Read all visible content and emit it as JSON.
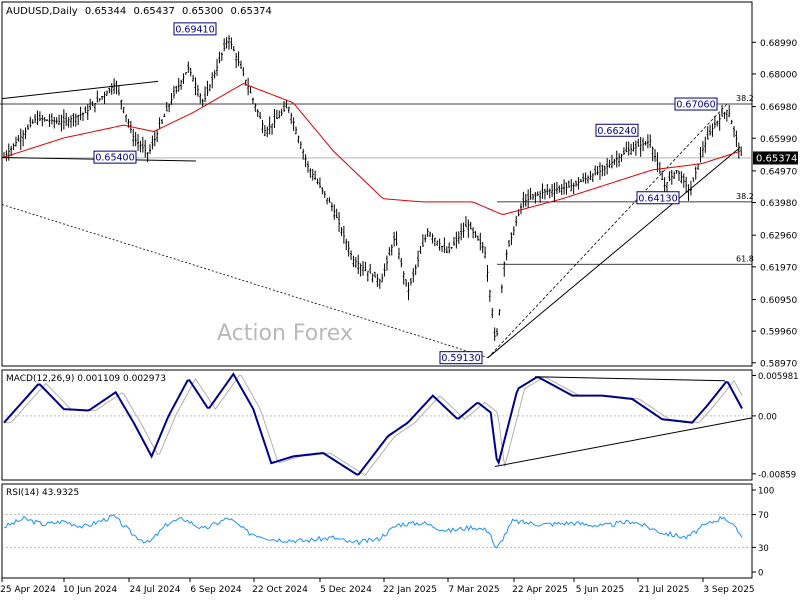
{
  "chart_data": {
    "type": "candlestick",
    "symbol": "AUDUSD,Daily",
    "ohlc": {
      "open": "0.65344",
      "high": "0.65437",
      "low": "0.65300",
      "close": "0.65374"
    },
    "watermark": "Action Forex",
    "x_tick_labels": [
      "25 Apr 2024",
      "10 Jun 2024",
      "24 Jul 2024",
      "6 Sep 2024",
      "22 Oct 2024",
      "5 Dec 2024",
      "22 Jan 2025",
      "7 Mar 2025",
      "22 Apr 2025",
      "5 Jun 2025",
      "21 Jul 2025",
      "3 Sep 2025"
    ],
    "price_axis": {
      "range": [
        0.5887,
        0.7025
      ],
      "ticks": [
        "0.68990",
        "0.68000",
        "0.66980",
        "0.65990",
        "0.64970",
        "0.63980",
        "0.62960",
        "0.61970",
        "0.60950",
        "0.59960",
        "0.58970"
      ]
    },
    "current_price_label": "0.65374",
    "price_waypoints": [
      {
        "x": 0,
        "close": 0.654
      },
      {
        "x": 32,
        "close": 0.666
      },
      {
        "x": 60,
        "close": 0.665
      },
      {
        "x": 82,
        "close": 0.668
      },
      {
        "x": 112,
        "close": 0.677
      },
      {
        "x": 130,
        "close": 0.66
      },
      {
        "x": 145,
        "close": 0.655
      },
      {
        "x": 168,
        "close": 0.672
      },
      {
        "x": 185,
        "close": 0.682
      },
      {
        "x": 200,
        "close": 0.671
      },
      {
        "x": 225,
        "close": 0.6915
      },
      {
        "x": 240,
        "close": 0.68
      },
      {
        "x": 262,
        "close": 0.662
      },
      {
        "x": 285,
        "close": 0.67
      },
      {
        "x": 305,
        "close": 0.651
      },
      {
        "x": 330,
        "close": 0.638
      },
      {
        "x": 350,
        "close": 0.622
      },
      {
        "x": 378,
        "close": 0.615
      },
      {
        "x": 392,
        "close": 0.629
      },
      {
        "x": 405,
        "close": 0.612
      },
      {
        "x": 425,
        "close": 0.631
      },
      {
        "x": 445,
        "close": 0.624
      },
      {
        "x": 465,
        "close": 0.633
      },
      {
        "x": 482,
        "close": 0.625
      },
      {
        "x": 490,
        "close": 0.605
      },
      {
        "x": 493,
        "close": 0.5945
      },
      {
        "x": 502,
        "close": 0.622
      },
      {
        "x": 520,
        "close": 0.64
      },
      {
        "x": 540,
        "close": 0.643
      },
      {
        "x": 570,
        "close": 0.645
      },
      {
        "x": 600,
        "close": 0.65
      },
      {
        "x": 625,
        "close": 0.656
      },
      {
        "x": 648,
        "close": 0.659
      },
      {
        "x": 662,
        "close": 0.645
      },
      {
        "x": 675,
        "close": 0.65
      },
      {
        "x": 688,
        "close": 0.643
      },
      {
        "x": 700,
        "close": 0.656
      },
      {
        "x": 712,
        "close": 0.664
      },
      {
        "x": 726,
        "close": 0.669
      },
      {
        "x": 740,
        "close": 0.6537
      }
    ],
    "sma_waypoints": [
      {
        "x": 0,
        "value": 0.654
      },
      {
        "x": 60,
        "value": 0.66
      },
      {
        "x": 120,
        "value": 0.664
      },
      {
        "x": 150,
        "value": 0.662
      },
      {
        "x": 190,
        "value": 0.668
      },
      {
        "x": 240,
        "value": 0.677
      },
      {
        "x": 290,
        "value": 0.671
      },
      {
        "x": 330,
        "value": 0.656
      },
      {
        "x": 380,
        "value": 0.641
      },
      {
        "x": 420,
        "value": 0.64
      },
      {
        "x": 470,
        "value": 0.64
      },
      {
        "x": 500,
        "value": 0.636
      },
      {
        "x": 560,
        "value": 0.641
      },
      {
        "x": 610,
        "value": 0.646
      },
      {
        "x": 650,
        "value": 0.65
      },
      {
        "x": 700,
        "value": 0.652
      },
      {
        "x": 740,
        "value": 0.656
      }
    ],
    "price_labels": [
      {
        "text": "0.69410",
        "price": 0.6941
      },
      {
        "text": "0.65400",
        "price": 0.654
      },
      {
        "text": "0.66240",
        "price": 0.6624
      },
      {
        "text": "0.67060",
        "price": 0.6706
      },
      {
        "text": "0.64130",
        "price": 0.6413
      },
      {
        "text": "0.59130",
        "price": 0.5913
      }
    ],
    "fib_levels": [
      {
        "text": "38.2",
        "price": 0.6706
      },
      {
        "text": "38.2",
        "price": 0.64
      },
      {
        "text": "61.8",
        "price": 0.6205
      }
    ],
    "macd": {
      "label": "MACD(12,26,9) 0.001109 0.002973",
      "axis_ticks": [
        "0.005981",
        "0.00",
        "-0.00859"
      ],
      "range": [
        -0.0095,
        0.0068
      ],
      "waypoints": [
        {
          "x": 0,
          "value": -0.001
        },
        {
          "x": 35,
          "value": 0.0048
        },
        {
          "x": 60,
          "value": 0.001
        },
        {
          "x": 85,
          "value": 0.0008
        },
        {
          "x": 112,
          "value": 0.0035
        },
        {
          "x": 130,
          "value": -0.001
        },
        {
          "x": 148,
          "value": -0.006
        },
        {
          "x": 165,
          "value": 0.0
        },
        {
          "x": 185,
          "value": 0.0055
        },
        {
          "x": 205,
          "value": 0.001
        },
        {
          "x": 230,
          "value": 0.0062
        },
        {
          "x": 250,
          "value": 0.001
        },
        {
          "x": 268,
          "value": -0.007
        },
        {
          "x": 290,
          "value": -0.006
        },
        {
          "x": 320,
          "value": -0.0055
        },
        {
          "x": 355,
          "value": -0.0088
        },
        {
          "x": 385,
          "value": -0.003
        },
        {
          "x": 405,
          "value": -0.001
        },
        {
          "x": 430,
          "value": 0.003
        },
        {
          "x": 455,
          "value": -0.0005
        },
        {
          "x": 475,
          "value": 0.002
        },
        {
          "x": 488,
          "value": 0.0005
        },
        {
          "x": 495,
          "value": -0.0075
        },
        {
          "x": 515,
          "value": 0.004
        },
        {
          "x": 535,
          "value": 0.0058
        },
        {
          "x": 570,
          "value": 0.003
        },
        {
          "x": 600,
          "value": 0.003
        },
        {
          "x": 630,
          "value": 0.0025
        },
        {
          "x": 660,
          "value": -0.0005
        },
        {
          "x": 690,
          "value": -0.001
        },
        {
          "x": 705,
          "value": 0.0015
        },
        {
          "x": 725,
          "value": 0.0052
        },
        {
          "x": 740,
          "value": 0.0011
        }
      ]
    },
    "rsi": {
      "label": "RSI(14) 43.9325",
      "axis_ticks": [
        "100",
        "70",
        "30",
        "0"
      ],
      "range": [
        0,
        100
      ],
      "levels": [
        70,
        30
      ],
      "waypoints": [
        {
          "x": 0,
          "value": 55
        },
        {
          "x": 20,
          "value": 65
        },
        {
          "x": 40,
          "value": 58
        },
        {
          "x": 60,
          "value": 62
        },
        {
          "x": 80,
          "value": 55
        },
        {
          "x": 110,
          "value": 68
        },
        {
          "x": 130,
          "value": 45
        },
        {
          "x": 145,
          "value": 35
        },
        {
          "x": 165,
          "value": 60
        },
        {
          "x": 180,
          "value": 65
        },
        {
          "x": 200,
          "value": 52
        },
        {
          "x": 225,
          "value": 66
        },
        {
          "x": 245,
          "value": 48
        },
        {
          "x": 270,
          "value": 40
        },
        {
          "x": 300,
          "value": 38
        },
        {
          "x": 330,
          "value": 42
        },
        {
          "x": 350,
          "value": 35
        },
        {
          "x": 375,
          "value": 40
        },
        {
          "x": 395,
          "value": 58
        },
        {
          "x": 420,
          "value": 60
        },
        {
          "x": 445,
          "value": 50
        },
        {
          "x": 470,
          "value": 55
        },
        {
          "x": 487,
          "value": 50
        },
        {
          "x": 493,
          "value": 26
        },
        {
          "x": 510,
          "value": 62
        },
        {
          "x": 540,
          "value": 58
        },
        {
          "x": 570,
          "value": 60
        },
        {
          "x": 600,
          "value": 56
        },
        {
          "x": 630,
          "value": 62
        },
        {
          "x": 660,
          "value": 48
        },
        {
          "x": 685,
          "value": 42
        },
        {
          "x": 700,
          "value": 55
        },
        {
          "x": 722,
          "value": 68
        },
        {
          "x": 740,
          "value": 44
        }
      ]
    }
  }
}
